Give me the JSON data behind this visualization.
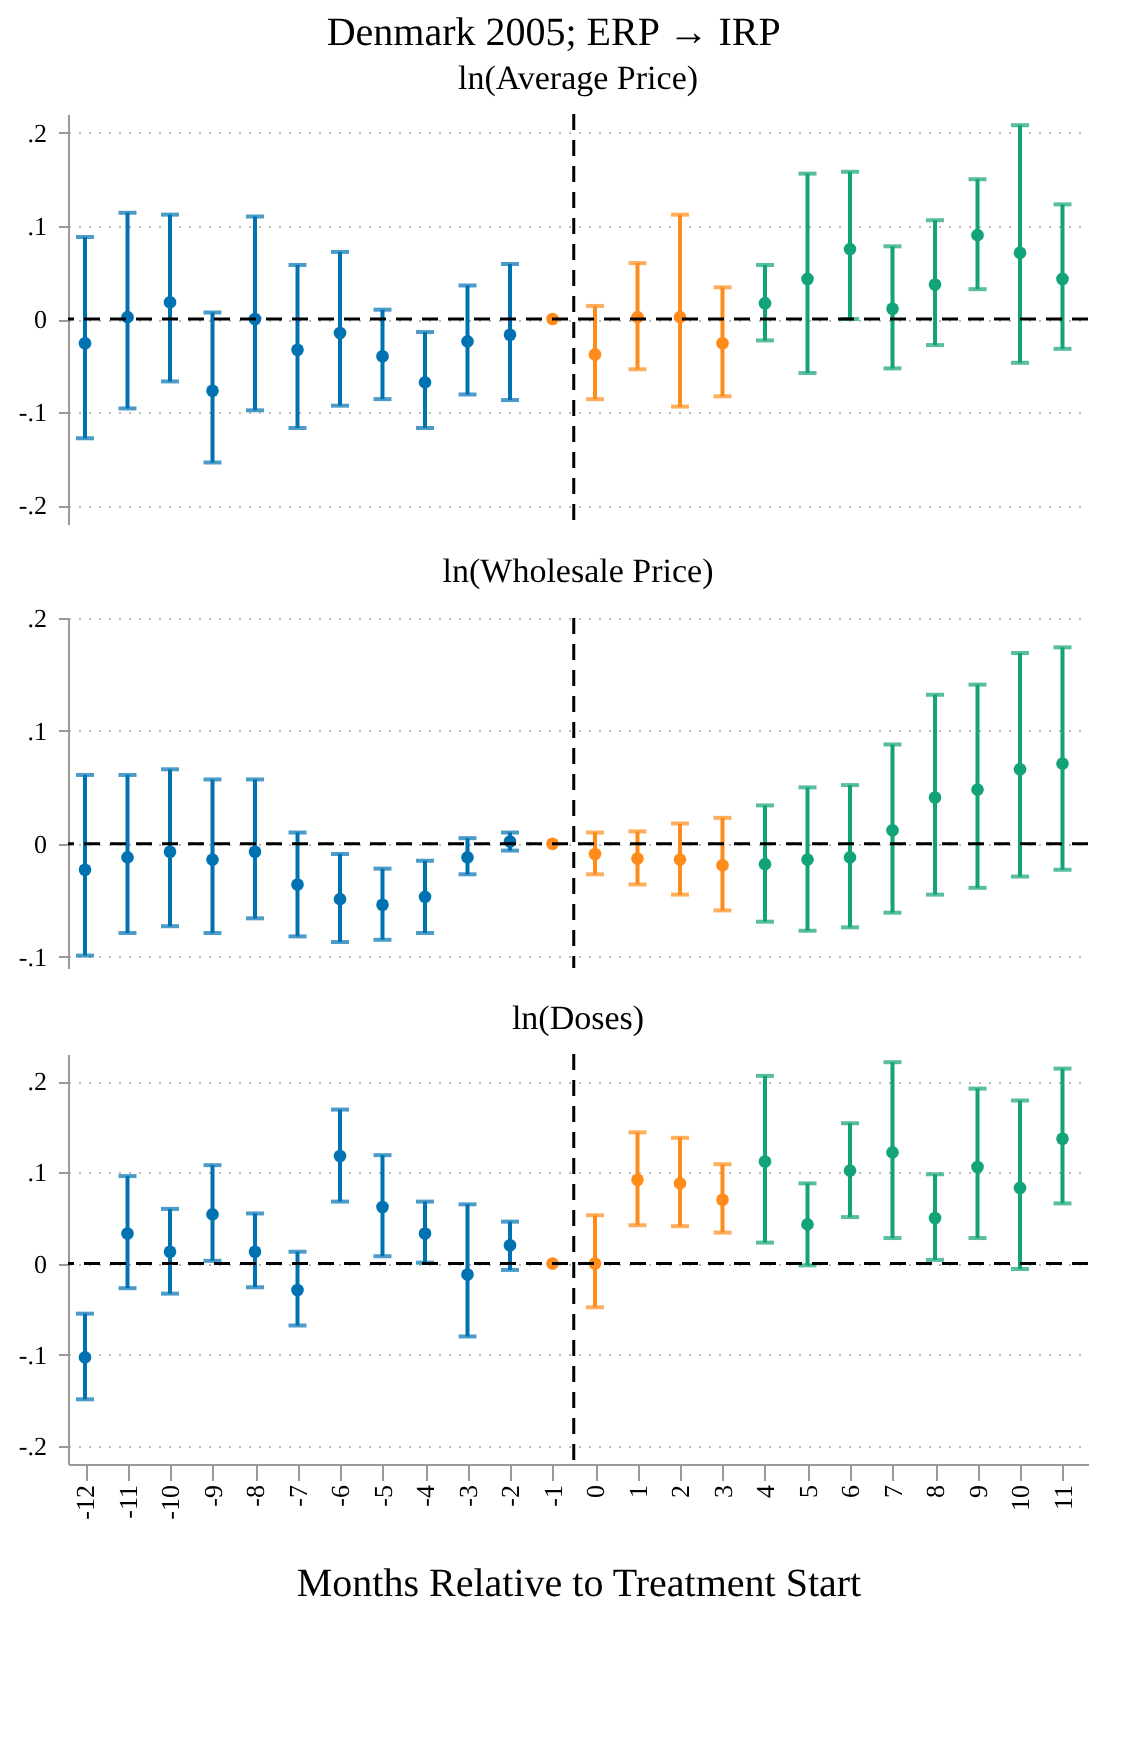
{
  "chart_data": [
    {
      "type": "scatter",
      "title": "Denmark 2005; ERP → IRP",
      "subtitle": "ln(Average Price)",
      "marker": "circle",
      "grid": "y",
      "tick_labels": "y",
      "xlim": [
        -12.4,
        11.6
      ],
      "xticks": [
        -12,
        -11,
        -10,
        -9,
        -8,
        -7,
        -6,
        -5,
        -4,
        -3,
        -2,
        -1,
        0,
        1,
        2,
        3,
        4,
        5,
        6,
        7,
        8,
        9,
        10,
        11
      ],
      "ylim": [
        -0.22,
        0.22
      ],
      "yticks": [
        {
          "value": -0.2,
          "label": "-.2"
        },
        {
          "value": -0.1,
          "label": "-.1"
        },
        {
          "value": 0,
          "label": "0"
        },
        {
          "value": 0.1,
          "label": ".1"
        },
        {
          "value": 0.2,
          "label": ".2"
        }
      ],
      "ref_lines": [
        {
          "axis": "x",
          "value": -0.5,
          "color": "#000000",
          "line_style": "dashed"
        },
        {
          "axis": "y",
          "value": 0,
          "color": "#000000",
          "line_style": "dashed"
        }
      ],
      "series": [
        {
          "color": "#0072b2",
          "x": [
            -12,
            -11,
            -10,
            -9,
            -8,
            -7,
            -6,
            -5,
            -4,
            -3,
            -2
          ],
          "values": [
            -0.026,
            0.002,
            0.018,
            -0.077,
            0,
            -0.033,
            -0.015,
            -0.04,
            -0.068,
            -0.024,
            -0.017
          ],
          "errors": [
            [
              -0.128,
              0.088
            ],
            [
              -0.096,
              0.114
            ],
            [
              -0.067,
              0.112
            ],
            [
              -0.154,
              0.007
            ],
            [
              -0.098,
              0.11
            ],
            [
              -0.117,
              0.058
            ],
            [
              -0.093,
              0.072
            ],
            [
              -0.086,
              0.01
            ],
            [
              -0.117,
              -0.014
            ],
            [
              -0.081,
              0.036
            ],
            [
              -0.087,
              0.059
            ]
          ]
        },
        {
          "color": "#ff8c1a",
          "x": [
            -1,
            0,
            1,
            2,
            3
          ],
          "values": [
            0,
            -0.038,
            0.002,
            0.002,
            -0.026
          ],
          "errors": [
            null,
            [
              -0.086,
              0.014
            ],
            [
              -0.054,
              0.06
            ],
            [
              -0.094,
              0.112
            ],
            [
              -0.083,
              0.034
            ]
          ]
        },
        {
          "color": "#12a378",
          "x": [
            4,
            5,
            6,
            7,
            8,
            9,
            10,
            11
          ],
          "values": [
            0.017,
            0.043,
            0.075,
            0.011,
            0.037,
            0.09,
            0.071,
            0.043
          ],
          "errors": [
            [
              -0.023,
              0.058
            ],
            [
              -0.058,
              0.156
            ],
            [
              0,
              0.158
            ],
            [
              -0.053,
              0.078
            ],
            [
              -0.028,
              0.106
            ],
            [
              0.032,
              0.15
            ],
            [
              -0.047,
              0.208
            ],
            [
              -0.032,
              0.123
            ]
          ]
        }
      ]
    },
    {
      "type": "scatter",
      "title": "ln(Wholesale Price)",
      "marker": "circle",
      "grid": "y",
      "tick_labels": "y",
      "xlim": [
        -12.4,
        11.6
      ],
      "xticks": [
        -12,
        -11,
        -10,
        -9,
        -8,
        -7,
        -6,
        -5,
        -4,
        -3,
        -2,
        -1,
        0,
        1,
        2,
        3,
        4,
        5,
        6,
        7,
        8,
        9,
        10,
        11
      ],
      "ylim": [
        -0.11,
        0.2
      ],
      "yticks": [
        {
          "value": -0.1,
          "label": "-.1"
        },
        {
          "value": 0,
          "label": "0"
        },
        {
          "value": 0.1,
          "label": ".1"
        },
        {
          "value": 0.2,
          "label": ".2"
        }
      ],
      "ref_lines": [
        {
          "axis": "x",
          "value": -0.5,
          "color": "#000000",
          "line_style": "dashed"
        },
        {
          "axis": "y",
          "value": 0,
          "color": "#000000",
          "line_style": "dashed"
        }
      ],
      "series": [
        {
          "color": "#0072b2",
          "x": [
            -12,
            -11,
            -10,
            -9,
            -8,
            -7,
            -6,
            -5,
            -4,
            -3,
            -2
          ],
          "values": [
            -0.023,
            -0.012,
            -0.007,
            -0.014,
            -0.007,
            -0.036,
            -0.049,
            -0.054,
            -0.047,
            -0.012,
            0.002
          ],
          "errors": [
            [
              -0.099,
              0.061
            ],
            [
              -0.079,
              0.061
            ],
            [
              -0.073,
              0.066
            ],
            [
              -0.079,
              0.057
            ],
            [
              -0.066,
              0.057
            ],
            [
              -0.082,
              0.01
            ],
            [
              -0.087,
              -0.009
            ],
            [
              -0.085,
              -0.022
            ],
            [
              -0.079,
              -0.015
            ],
            [
              -0.027,
              0.005
            ],
            [
              -0.006,
              0.01
            ]
          ]
        },
        {
          "color": "#ff8c1a",
          "x": [
            -1,
            0,
            1,
            2,
            3
          ],
          "values": [
            0,
            -0.009,
            -0.013,
            -0.014,
            -0.019
          ],
          "errors": [
            null,
            [
              -0.027,
              0.01
            ],
            [
              -0.036,
              0.011
            ],
            [
              -0.045,
              0.018
            ],
            [
              -0.059,
              0.023
            ]
          ]
        },
        {
          "color": "#12a378",
          "x": [
            4,
            5,
            6,
            7,
            8,
            9,
            10,
            11
          ],
          "values": [
            -0.018,
            -0.014,
            -0.012,
            0.012,
            0.041,
            0.048,
            0.066,
            0.071
          ],
          "errors": [
            [
              -0.069,
              0.034
            ],
            [
              -0.077,
              0.05
            ],
            [
              -0.074,
              0.052
            ],
            [
              -0.061,
              0.088
            ],
            [
              -0.045,
              0.132
            ],
            [
              -0.039,
              0.141
            ],
            [
              -0.029,
              0.169
            ],
            [
              -0.023,
              0.174
            ]
          ]
        }
      ]
    },
    {
      "type": "scatter",
      "title": "ln(Doses)",
      "xlabel": "Months Relative to Treatment Start",
      "marker": "circle",
      "grid": "y",
      "xlim": [
        -12.4,
        11.6
      ],
      "xticks": [
        -12,
        -11,
        -10,
        -9,
        -8,
        -7,
        -6,
        -5,
        -4,
        -3,
        -2,
        -1,
        0,
        1,
        2,
        3,
        4,
        5,
        6,
        7,
        8,
        9,
        10,
        11
      ],
      "ylim": [
        -0.22,
        0.23
      ],
      "yticks": [
        {
          "value": -0.2,
          "label": "-.2"
        },
        {
          "value": -0.1,
          "label": "-.1"
        },
        {
          "value": 0,
          "label": "0"
        },
        {
          "value": 0.1,
          "label": ".1"
        },
        {
          "value": 0.2,
          "label": ".2"
        }
      ],
      "ref_lines": [
        {
          "axis": "x",
          "value": -0.5,
          "color": "#000000",
          "line_style": "dashed"
        },
        {
          "axis": "y",
          "value": 0,
          "color": "#000000",
          "line_style": "dashed"
        }
      ],
      "series": [
        {
          "color": "#0072b2",
          "x": [
            -12,
            -11,
            -10,
            -9,
            -8,
            -7,
            -6,
            -5,
            -4,
            -3,
            -2
          ],
          "values": [
            -0.103,
            0.033,
            0.013,
            0.054,
            0.013,
            -0.029,
            0.118,
            0.062,
            0.033,
            -0.012,
            0.02
          ],
          "errors": [
            [
              -0.149,
              -0.055
            ],
            [
              -0.027,
              0.096
            ],
            [
              -0.033,
              0.06
            ],
            [
              0.003,
              0.108
            ],
            [
              -0.026,
              0.055
            ],
            [
              -0.068,
              0.013
            ],
            [
              0.068,
              0.169
            ],
            [
              0.008,
              0.119
            ],
            [
              0.001,
              0.068
            ],
            [
              -0.08,
              0.065
            ],
            [
              -0.007,
              0.046
            ]
          ]
        },
        {
          "color": "#ff8c1a",
          "x": [
            -1,
            0,
            1,
            2,
            3
          ],
          "values": [
            0,
            0,
            0.092,
            0.088,
            0.07
          ],
          "errors": [
            null,
            [
              -0.048,
              0.053
            ],
            [
              0.042,
              0.144
            ],
            [
              0.041,
              0.138
            ],
            [
              0.034,
              0.109
            ]
          ]
        },
        {
          "color": "#12a378",
          "x": [
            4,
            5,
            6,
            7,
            8,
            9,
            10,
            11
          ],
          "values": [
            0.112,
            0.043,
            0.102,
            0.122,
            0.05,
            0.106,
            0.083,
            0.137
          ],
          "errors": [
            [
              0.023,
              0.206
            ],
            [
              -0.002,
              0.088
            ],
            [
              0.051,
              0.154
            ],
            [
              0.028,
              0.221
            ],
            [
              0.004,
              0.098
            ],
            [
              0.028,
              0.192
            ],
            [
              -0.006,
              0.179
            ],
            [
              0.066,
              0.214
            ]
          ]
        }
      ]
    }
  ]
}
